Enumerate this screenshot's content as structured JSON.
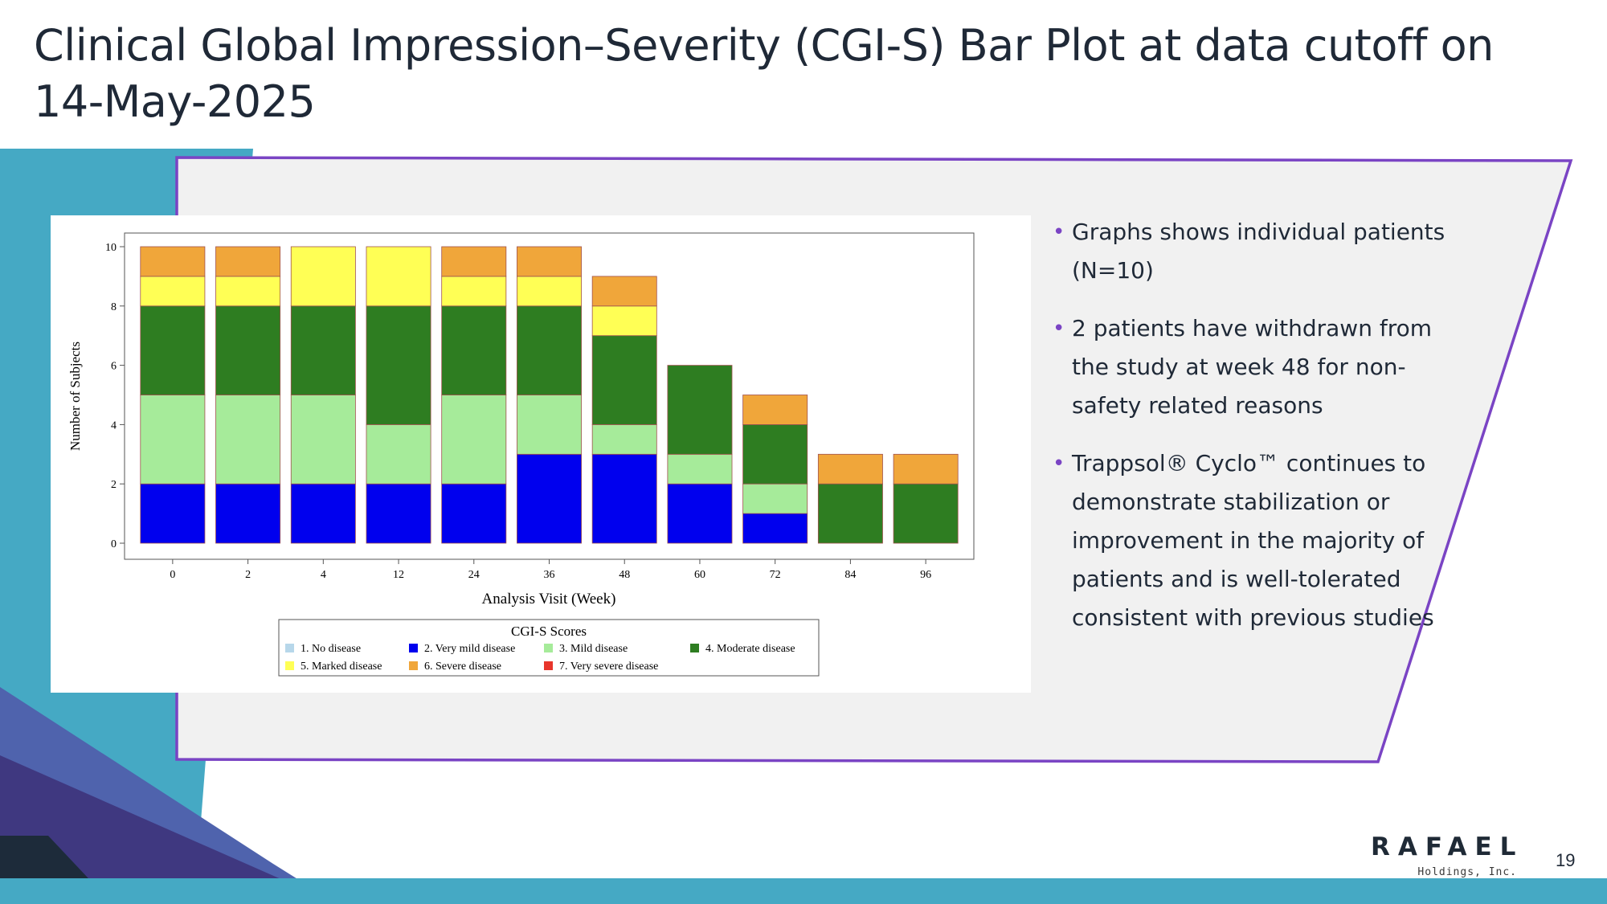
{
  "slide": {
    "title": "Clinical Global Impression–Severity (CGI-S) Bar Plot at data cutoff on 14-May-2025",
    "page_number": "19"
  },
  "bullets": [
    "Graphs shows individual patients (N=10)",
    "2 patients have withdrawn from the study at week 48 for non-safety related reasons",
    "Trappsol® Cyclo™ continues to demonstrate stabilization or improvement in the majority of patients and is well-tolerated consistent with previous studies"
  ],
  "logo": {
    "name": "RAFAEL",
    "subtitle": "Holdings, Inc."
  },
  "colors": {
    "accent_purple": "#7a44c4",
    "teal": "#45a9c4",
    "panel_gray": "#f1f1f1"
  },
  "chart_data": {
    "type": "bar",
    "stacked": true,
    "xlabel": "Analysis Visit (Week)",
    "ylabel": "Number of Subjects",
    "ylim": [
      0,
      10
    ],
    "yticks": [
      "0",
      "2",
      "4",
      "6",
      "8",
      "10"
    ],
    "categories": [
      "0",
      "2",
      "4",
      "12",
      "24",
      "36",
      "48",
      "60",
      "72",
      "84",
      "96"
    ],
    "series": [
      {
        "name": "1. No disease",
        "color": "#b7d7ea",
        "values": [
          0,
          0,
          0,
          0,
          0,
          0,
          0,
          0,
          0,
          0,
          0
        ]
      },
      {
        "name": "2. Very mild disease",
        "color": "#0000ee",
        "values": [
          2,
          2,
          2,
          2,
          2,
          3,
          3,
          2,
          1,
          0,
          0
        ]
      },
      {
        "name": "3. Mild disease",
        "color": "#a6eb9a",
        "values": [
          3,
          3,
          3,
          2,
          3,
          2,
          1,
          1,
          1,
          0,
          0
        ]
      },
      {
        "name": "4. Moderate disease",
        "color": "#2e7d21",
        "values": [
          3,
          3,
          3,
          4,
          3,
          3,
          3,
          3,
          2,
          2,
          2
        ]
      },
      {
        "name": "5. Marked disease",
        "color": "#ffff55",
        "values": [
          1,
          1,
          2,
          2,
          1,
          1,
          1,
          0,
          0,
          0,
          0
        ]
      },
      {
        "name": "6. Severe disease",
        "color": "#f0a63a",
        "values": [
          1,
          1,
          0,
          0,
          1,
          1,
          1,
          0,
          1,
          1,
          1
        ]
      },
      {
        "name": "7. Very severe disease",
        "color": "#e8352b",
        "values": [
          0,
          0,
          0,
          0,
          0,
          0,
          0,
          0,
          0,
          0,
          0
        ]
      }
    ],
    "legend": {
      "title": "CGI-S Scores",
      "position": "bottom"
    }
  }
}
